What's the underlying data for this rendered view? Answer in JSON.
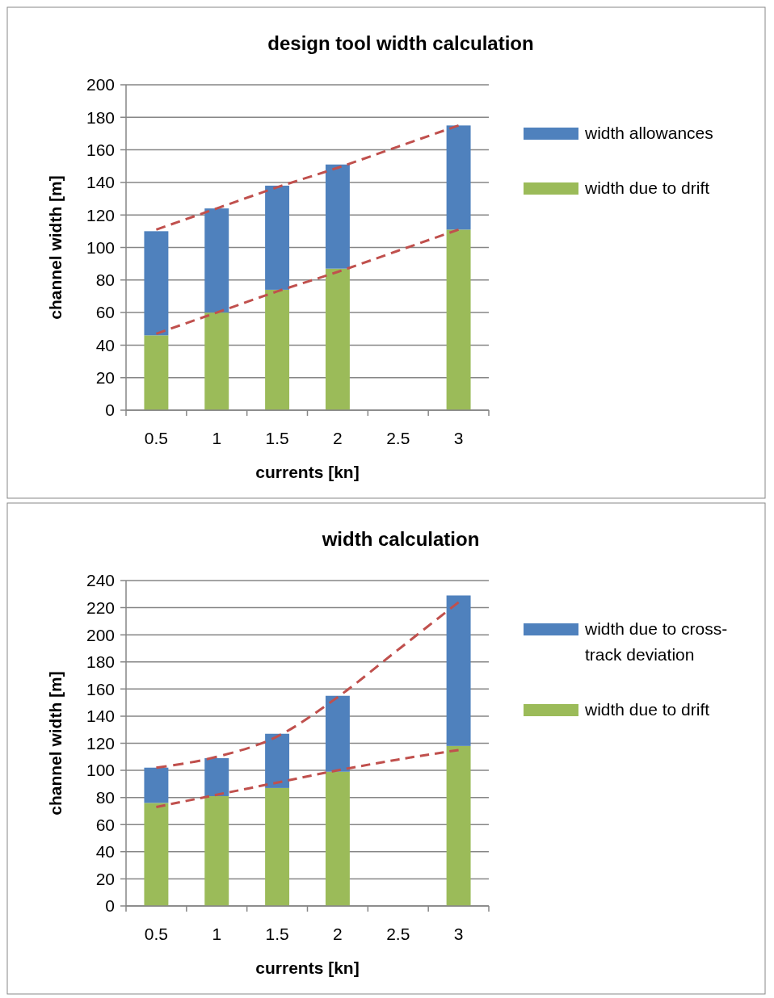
{
  "chart_data": [
    {
      "type": "bar",
      "title": "design tool width calculation",
      "xlabel": "currents [kn]",
      "ylabel": "channel width [m]",
      "categories": [
        "0.5",
        "1",
        "1.5",
        "2",
        "2.5",
        "3"
      ],
      "stacked": true,
      "ylim": [
        0,
        200
      ],
      "yticks": [
        0,
        20,
        40,
        60,
        80,
        100,
        120,
        140,
        160,
        180,
        200
      ],
      "grid": "y",
      "legend": "right",
      "series": [
        {
          "name": "width due to drift",
          "color": "#9bbb59",
          "values": [
            46,
            60,
            74,
            87,
            null,
            111
          ]
        },
        {
          "name": "width allowances",
          "color": "#4f81bd",
          "values": [
            64,
            64,
            64,
            64,
            null,
            64
          ]
        },
        {
          "type": "line",
          "color": "#c0504d",
          "line_style": "dashed",
          "values": [
            111,
            124,
            137,
            149,
            162,
            175
          ]
        },
        {
          "type": "line",
          "color": "#c0504d",
          "line_style": "dashed",
          "values": [
            47,
            60,
            73,
            85,
            98,
            111
          ]
        }
      ]
    },
    {
      "type": "bar",
      "title": "width calculation",
      "xlabel": "currents [kn]",
      "ylabel": "channel width [m]",
      "categories": [
        "0.5",
        "1",
        "1.5",
        "2",
        "2.5",
        "3"
      ],
      "stacked": true,
      "ylim": [
        0,
        240
      ],
      "yticks": [
        0,
        20,
        40,
        60,
        80,
        100,
        120,
        140,
        160,
        180,
        200,
        220,
        240
      ],
      "grid": "y",
      "legend": "right",
      "series": [
        {
          "name": "width due to drift",
          "color": "#9bbb59",
          "values": [
            76,
            81,
            87,
            99,
            null,
            118
          ]
        },
        {
          "name": "width due to cross-track deviation",
          "color": "#4f81bd",
          "values": [
            26,
            28,
            40,
            56,
            null,
            111
          ]
        },
        {
          "type": "line",
          "color": "#c0504d",
          "line_style": "dashed",
          "values": [
            102,
            110,
            125,
            154,
            189,
            224
          ]
        },
        {
          "type": "line",
          "color": "#c0504d",
          "line_style": "dashed",
          "values": [
            73,
            82,
            91,
            100,
            108,
            115
          ]
        }
      ]
    }
  ]
}
